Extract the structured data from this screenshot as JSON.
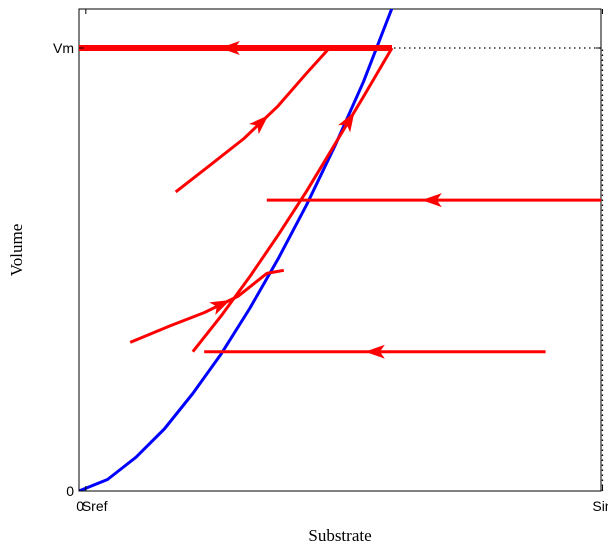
{
  "chart_data": {
    "type": "line",
    "xlabel": "Substrate",
    "ylabel": "Volume",
    "xlim": [
      0,
      1
    ],
    "ylim": [
      0,
      1
    ],
    "x_ticks": [
      {
        "value": 0,
        "label": "0"
      },
      {
        "value": 0.012,
        "label": "Sref"
      },
      {
        "value": 0.92,
        "label": "Sin"
      }
    ],
    "y_ticks": [
      {
        "value": 0,
        "label": "0"
      },
      {
        "value": 1,
        "label": "Vm"
      }
    ],
    "grid": false,
    "reference_lines": [
      {
        "name": "Vm",
        "orientation": "horizontal",
        "y": 1,
        "x_range": [
          0,
          0.92
        ],
        "style": "dotted"
      },
      {
        "name": "Sin",
        "orientation": "vertical",
        "x": 0.92,
        "y_range": [
          0,
          1
        ],
        "style": "dotted"
      }
    ],
    "series": [
      {
        "color": "#0000ff",
        "x": [
          0,
          0.05,
          0.1,
          0.15,
          0.2,
          0.25,
          0.3,
          0.35,
          0.4,
          0.45,
          0.5,
          0.55
        ],
        "y": [
          0,
          0.026,
          0.076,
          0.14,
          0.22,
          0.31,
          0.412,
          0.524,
          0.646,
          0.78,
          0.924,
          1.09
        ]
      },
      {
        "color": "#ff0000",
        "x": [
          0.2,
          0.25,
          0.3,
          0.35,
          0.4,
          0.45,
          0.5,
          0.55
        ],
        "y": [
          0.3145,
          0.3958,
          0.4835,
          0.5775,
          0.6768,
          0.7836,
          0.8902,
          1.0
        ]
      },
      {
        "color": "#ff0000",
        "x": [
          0.55,
          0.43,
          0.32,
          0.21,
          0.1,
          0
        ],
        "y": [
          1.0,
          1.0,
          1.0,
          1.0,
          1.0,
          1.0
        ]
      },
      {
        "color": "#ff0000",
        "x": [
          0.92,
          0.8,
          0.68,
          0.56,
          0.44,
          0.33
        ],
        "y": [
          0.6566,
          0.6566,
          0.6566,
          0.6566,
          0.6566,
          0.6566
        ]
      },
      {
        "color": "#ff0000",
        "x": [
          0.82,
          0.7,
          0.58,
          0.46,
          0.34,
          0.22
        ],
        "y": [
          0.3145,
          0.3145,
          0.3145,
          0.3145,
          0.3145,
          0.3145
        ]
      },
      {
        "color": "#ff0000",
        "x": [
          0.17,
          0.23,
          0.29,
          0.35,
          0.4,
          0.44
        ],
        "y": [
          0.6751,
          0.7353,
          0.7956,
          0.8693,
          0.9431,
          1.0
        ]
      },
      {
        "color": "#ff0000",
        "x": [
          0.09,
          0.16,
          0.22,
          0.28,
          0.33,
          0.36
        ],
        "y": [
          0.3354,
          0.3726,
          0.4028,
          0.44,
          0.4912,
          0.4982
        ]
      }
    ]
  }
}
